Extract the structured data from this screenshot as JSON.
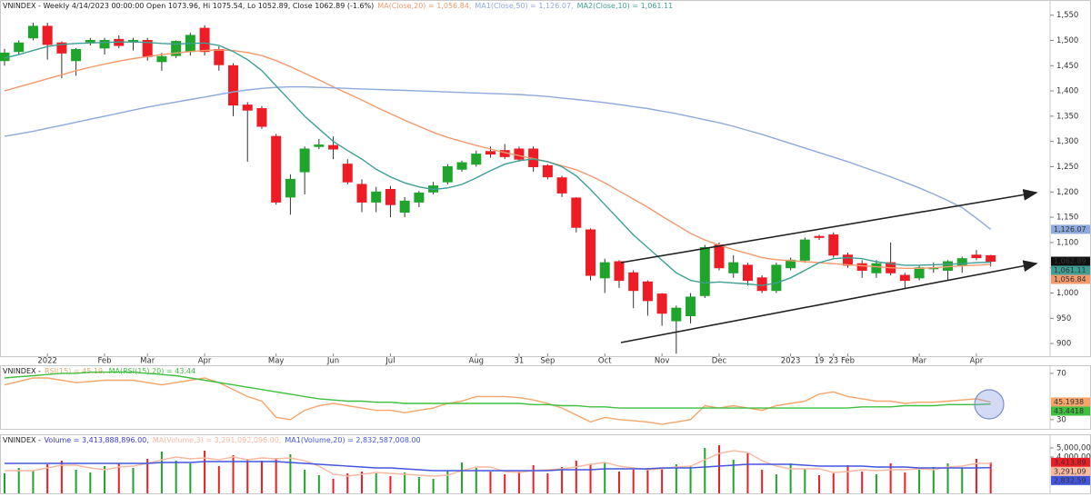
{
  "chart_data": [
    {
      "type": "candlestick",
      "title": "VNINDEX - Weekly 4/14/2023 00:00:00 Open 1073.96, Hi 1075.54, Lo 1052.89, Close 1062.89 (-1.6%)",
      "categories": [
        null,
        null,
        null,
        "2022",
        null,
        null,
        null,
        "Feb",
        null,
        null,
        "Mar",
        null,
        null,
        null,
        "Apr",
        null,
        null,
        null,
        null,
        "May",
        null,
        null,
        null,
        "Jun",
        null,
        null,
        null,
        "Jul",
        null,
        null,
        null,
        null,
        null,
        "Aug",
        null,
        null,
        "31",
        null,
        "Sep",
        null,
        null,
        null,
        "Oct",
        null,
        null,
        null,
        "Nov",
        null,
        null,
        null,
        "Dec",
        null,
        null,
        null,
        null,
        "2023",
        null,
        "19",
        "23",
        "Feb",
        null,
        null,
        null,
        null,
        "Mar",
        null,
        null,
        null,
        "Apr",
        null
      ],
      "open": [
        1460,
        1478,
        1505,
        1528,
        1495,
        1460,
        1497,
        1485,
        1502,
        1497,
        1500,
        1458,
        1470,
        1478,
        1524,
        1482,
        1450,
        1372,
        1365,
        1310,
        1190,
        1240,
        1290,
        1292,
        1255,
        1215,
        1180,
        1205,
        1160,
        1180,
        1200,
        1220,
        1245,
        1255,
        1280,
        1282,
        1285,
        1285,
        1252,
        1228,
        1188,
        1125,
        1030,
        1062,
        1040,
        1022,
        998,
        945,
        955,
        995,
        1095,
        1040,
        1055,
        1030,
        1005,
        1050,
        1065,
        1112,
        1115,
        1075,
        1058,
        1040,
        1060,
        1035,
        1030,
        1048,
        1045,
        1055,
        1075,
        1073.96
      ],
      "high": [
        1483,
        1500,
        1535,
        1535,
        1498,
        1485,
        1505,
        1505,
        1510,
        1505,
        1505,
        1475,
        1500,
        1515,
        1530,
        1488,
        1455,
        1378,
        1370,
        1315,
        1235,
        1290,
        1305,
        1310,
        1265,
        1225,
        1210,
        1212,
        1190,
        1202,
        1220,
        1255,
        1262,
        1282,
        1290,
        1295,
        1290,
        1290,
        1255,
        1232,
        1190,
        1128,
        1068,
        1065,
        1045,
        1025,
        1000,
        975,
        1000,
        1095,
        1100,
        1075,
        1060,
        1035,
        1060,
        1070,
        1110,
        1115,
        1120,
        1080,
        1065,
        1065,
        1100,
        1040,
        1055,
        1060,
        1065,
        1072,
        1085,
        1075.54
      ],
      "low": [
        1450,
        1472,
        1500,
        1462,
        1425,
        1430,
        1490,
        1472,
        1485,
        1480,
        1460,
        1440,
        1465,
        1470,
        1470,
        1440,
        1350,
        1260,
        1325,
        1175,
        1155,
        1195,
        1285,
        1265,
        1215,
        1160,
        1160,
        1150,
        1150,
        1170,
        1195,
        1215,
        1240,
        1250,
        1268,
        1265,
        1260,
        1240,
        1225,
        1190,
        1120,
        1025,
        1000,
        1010,
        970,
        955,
        935,
        880,
        940,
        990,
        1045,
        1030,
        1015,
        1000,
        1000,
        1045,
        1060,
        1105,
        1070,
        1050,
        1030,
        1030,
        1035,
        1010,
        1025,
        1040,
        1025,
        1040,
        1065,
        1052.89
      ],
      "close": [
        1475,
        1495,
        1528,
        1492,
        1475,
        1482,
        1500,
        1500,
        1490,
        1500,
        1468,
        1468,
        1498,
        1510,
        1478,
        1452,
        1372,
        1362,
        1330,
        1180,
        1225,
        1285,
        1293,
        1285,
        1220,
        1180,
        1200,
        1175,
        1182,
        1198,
        1212,
        1250,
        1258,
        1275,
        1275,
        1270,
        1265,
        1250,
        1230,
        1198,
        1130,
        1035,
        1060,
        1025,
        1005,
        985,
        960,
        970,
        992,
        1090,
        1050,
        1060,
        1025,
        1005,
        1055,
        1065,
        1105,
        1110,
        1075,
        1055,
        1045,
        1058,
        1040,
        1025,
        1050,
        1050,
        1062,
        1068,
        1070,
        1062.89
      ],
      "close_label": "1,062.89",
      "up_color": "#1fa52b",
      "down_color": "#ee1c25",
      "series": [
        {
          "name": "MA(Close,20) = 1,056.84,",
          "color": "#f29a6e",
          "last_label": "1,056.84",
          "values": [
            1400,
            1408,
            1416,
            1424,
            1432,
            1440,
            1447,
            1453,
            1459,
            1464,
            1468,
            1472,
            1475,
            1478,
            1480,
            1481,
            1480,
            1476,
            1470,
            1460,
            1448,
            1435,
            1422,
            1408,
            1395,
            1382,
            1368,
            1355,
            1342,
            1330,
            1318,
            1308,
            1300,
            1292,
            1285,
            1278,
            1272,
            1266,
            1260,
            1252,
            1244,
            1232,
            1218,
            1202,
            1186,
            1170,
            1152,
            1135,
            1118,
            1105,
            1095,
            1086,
            1078,
            1070,
            1066,
            1064,
            1062,
            1060,
            1058,
            1056,
            1054,
            1052,
            1050,
            1049,
            1049,
            1050,
            1052,
            1054,
            1055,
            1056.84
          ]
        },
        {
          "name": "MA1(Close,50) = 1,126.07,",
          "color": "#8ea9dc",
          "last_label": "1,126.07",
          "values": [
            1310,
            1315,
            1320,
            1326,
            1332,
            1338,
            1344,
            1350,
            1356,
            1362,
            1368,
            1373,
            1378,
            1383,
            1388,
            1393,
            1398,
            1402,
            1405,
            1407,
            1408,
            1408,
            1407,
            1406,
            1405,
            1404,
            1403,
            1402,
            1401,
            1400,
            1399,
            1398,
            1397,
            1396,
            1395,
            1394,
            1393,
            1391,
            1389,
            1386,
            1383,
            1380,
            1377,
            1373,
            1369,
            1365,
            1360,
            1355,
            1349,
            1343,
            1337,
            1330,
            1322,
            1314,
            1305,
            1296,
            1287,
            1278,
            1269,
            1260,
            1250,
            1240,
            1230,
            1219,
            1208,
            1196,
            1183,
            1169,
            1148,
            1126.07
          ]
        },
        {
          "name": "MA2(Close,10) = 1,061.11",
          "color": "#3f9f95",
          "last_label": "1,061.11",
          "values": [
            1465,
            1472,
            1480,
            1488,
            1492,
            1494,
            1495,
            1496,
            1497,
            1497,
            1496,
            1494,
            1493,
            1494,
            1495,
            1490,
            1478,
            1462,
            1440,
            1410,
            1380,
            1350,
            1325,
            1300,
            1282,
            1265,
            1245,
            1230,
            1218,
            1210,
            1205,
            1208,
            1215,
            1228,
            1242,
            1255,
            1262,
            1265,
            1260,
            1250,
            1232,
            1205,
            1175,
            1145,
            1115,
            1090,
            1065,
            1040,
            1025,
            1020,
            1022,
            1020,
            1018,
            1015,
            1020,
            1030,
            1045,
            1060,
            1068,
            1070,
            1068,
            1062,
            1058,
            1055,
            1055,
            1056,
            1057,
            1058,
            1060,
            1061.11
          ]
        }
      ],
      "ylim": [
        875,
        1580
      ],
      "yticks": [
        900,
        950,
        {
          "value": 1000,
          "label": "1,000"
        },
        {
          "value": 1050,
          "label": "1,050"
        },
        {
          "value": 1100,
          "label": "1,100"
        },
        {
          "value": 1150,
          "label": "1,150"
        },
        {
          "value": 1200,
          "label": "1,200"
        },
        {
          "value": 1250,
          "label": "1,250"
        },
        {
          "value": 1300,
          "label": "1,300"
        },
        {
          "value": 1350,
          "label": "1,350"
        },
        {
          "value": 1400,
          "label": "1,400"
        },
        {
          "value": 1450,
          "label": "1,450"
        },
        {
          "value": 1500,
          "label": "1,500"
        },
        {
          "value": 1550,
          "label": "1,550"
        }
      ]
    },
    {
      "type": "line",
      "title": "VNINDEX -",
      "series": [
        {
          "name": "RSI(15) = 45.19,",
          "color": "#f4a56a",
          "last_label": "45.1938",
          "values": [
            60,
            63,
            66,
            66,
            64,
            62,
            63,
            64,
            64,
            64,
            62,
            60,
            62,
            64,
            66,
            62,
            56,
            50,
            46,
            32,
            30,
            38,
            42,
            44,
            42,
            40,
            38,
            38,
            36,
            38,
            40,
            44,
            46,
            50,
            50,
            50,
            49,
            47,
            44,
            40,
            34,
            28,
            32,
            30,
            29,
            28,
            26,
            28,
            30,
            42,
            40,
            42,
            40,
            38,
            42,
            44,
            46,
            52,
            54,
            50,
            48,
            46,
            46,
            44,
            45,
            45,
            46,
            47,
            48,
            45.1938
          ]
        },
        {
          "name": "MA(RSI(15),20) = 43.44",
          "color": "#3fbf3f",
          "last_label": "43.4418",
          "values": [
            66,
            67,
            68,
            69,
            70,
            70,
            71,
            71,
            71,
            71,
            70,
            69,
            68,
            66,
            64,
            62,
            60,
            58,
            56,
            54,
            52,
            50,
            48,
            47,
            46,
            46,
            45,
            45,
            44,
            44,
            44,
            44,
            44,
            44,
            44,
            44,
            44,
            43,
            43,
            42,
            42,
            41,
            41,
            40,
            40,
            40,
            40,
            40,
            40,
            40,
            40,
            40,
            40,
            40,
            40,
            40,
            40,
            40,
            40,
            40,
            41,
            41,
            41,
            42,
            42,
            42,
            43,
            43,
            43,
            43.4418
          ]
        }
      ],
      "ylim": [
        22,
        77
      ],
      "yticks": [
        30,
        70
      ]
    },
    {
      "type": "volume",
      "title": "VNINDEX -",
      "name": "Volume = 3,413,888,896.00,",
      "value_label": "3,413,89",
      "up_color": "#1fa52b",
      "down_color": "#ee1c25",
      "values": [
        2200000000.0,
        2800000000.0,
        2500000000.0,
        3200000000.0,
        3600000000.0,
        2600000000.0,
        2300000000.0,
        3000000000.0,
        3300000000.0,
        2800000000.0,
        3800000000.0,
        4600000000.0,
        3600000000.0,
        3300000000.0,
        4700000000.0,
        3000000000.0,
        4200000000.0,
        3800000000.0,
        3600000000.0,
        3900000000.0,
        4300000000.0,
        2600000000.0,
        2000000000.0,
        1600000000.0,
        2200000000.0,
        2400000000.0,
        2200000000.0,
        1900000000.0,
        2300000000.0,
        1800000000.0,
        1600000000.0,
        2500000000.0,
        3400000000.0,
        2800000000.0,
        2400000000.0,
        2100000000.0,
        2400000000.0,
        3100000000.0,
        2200000000.0,
        2900000000.0,
        3600000000.0,
        3200000000.0,
        3400000000.0,
        2400000000.0,
        2600000000.0,
        2800000000.0,
        2700000000.0,
        3200000000.0,
        3000000000.0,
        5000000000.0,
        5300000000.0,
        3700000000.0,
        4400000000.0,
        2600000000.0,
        2100000000.0,
        3300000000.0,
        2700000000.0,
        2000000000.0,
        2200000000.0,
        3100000000.0,
        2400000000.0,
        2100000000.0,
        3300000000.0,
        2300000000.0,
        2600000000.0,
        2900000000.0,
        3300000000.0,
        2800000000.0,
        3800000000.0,
        3413888896
      ],
      "series": [
        {
          "name": "MA(Volume,3) = 3,291,092,096.00,",
          "color": "#f7b9a0",
          "last_label": "3,291,09",
          "values": [
            2500000000.0,
            2500000000.0,
            2500000000.0,
            2800000000.0,
            3100000000.0,
            3100000000.0,
            2800000000.0,
            2600000000.0,
            2900000000.0,
            3000000000.0,
            3300000000.0,
            3700000000.0,
            4000000000.0,
            3800000000.0,
            3900000000.0,
            3700000000.0,
            4000000000.0,
            3700000000.0,
            3900000000.0,
            3800000000.0,
            3900000000.0,
            3600000000.0,
            3000000000.0,
            2100000000.0,
            1900000000.0,
            2100000000.0,
            2300000000.0,
            2200000000.0,
            2100000000.0,
            2000000000.0,
            1900000000.0,
            2000000000.0,
            2500000000.0,
            2900000000.0,
            2900000000.0,
            2400000000.0,
            2300000000.0,
            2500000000.0,
            2600000000.0,
            2700000000.0,
            2900000000.0,
            3200000000.0,
            3400000000.0,
            3000000000.0,
            2800000000.0,
            2600000000.0,
            2700000000.0,
            2900000000.0,
            3000000000.0,
            3700000000.0,
            4400000000.0,
            4700000000.0,
            4500000000.0,
            3600000000.0,
            3000000000.0,
            2700000000.0,
            2700000000.0,
            2700000000.0,
            2300000000.0,
            2400000000.0,
            2600000000.0,
            2500000000.0,
            2600000000.0,
            2600000000.0,
            2700000000.0,
            2600000000.0,
            2900000000.0,
            3000000000.0,
            3300000000.0,
            3291092096
          ]
        },
        {
          "name": "MA1(Volume,20) = 2,832,587,008.00",
          "color": "#4455dd",
          "last_label": "2,832,59",
          "values": [
            3300000000.0,
            3300000000.0,
            3300000000.0,
            3300000000.0,
            3300000000.0,
            3300000000.0,
            3300000000.0,
            3300000000.0,
            3300000000.0,
            3300000000.0,
            3300000000.0,
            3400000000.0,
            3400000000.0,
            3400000000.0,
            3500000000.0,
            3500000000.0,
            3500000000.0,
            3500000000.0,
            3500000000.0,
            3500000000.0,
            3400000000.0,
            3300000000.0,
            3200000000.0,
            3100000000.0,
            3000000000.0,
            2900000000.0,
            2800000000.0,
            2800000000.0,
            2700000000.0,
            2600000000.0,
            2500000000.0,
            2500000000.0,
            2500000000.0,
            2500000000.0,
            2500000000.0,
            2500000000.0,
            2500000000.0,
            2500000000.0,
            2500000000.0,
            2600000000.0,
            2600000000.0,
            2600000000.0,
            2700000000.0,
            2700000000.0,
            2700000000.0,
            2700000000.0,
            2800000000.0,
            2800000000.0,
            2800000000.0,
            2900000000.0,
            3000000000.0,
            3100000000.0,
            3200000000.0,
            3200000000.0,
            3200000000.0,
            3200000000.0,
            3100000000.0,
            3000000000.0,
            3000000000.0,
            3000000000.0,
            3000000000.0,
            2900000000.0,
            2900000000.0,
            2900000000.0,
            2800000000.0,
            2800000000.0,
            2800000000.0,
            2800000000.0,
            2800000000.0,
            2832587008
          ]
        }
      ],
      "ylim": [
        0,
        6500000000
      ],
      "yticks": [
        {
          "value": 4000000000,
          "label": "4,000,00"
        },
        {
          "value": 5000000000,
          "label": "5,000,00"
        }
      ]
    }
  ]
}
